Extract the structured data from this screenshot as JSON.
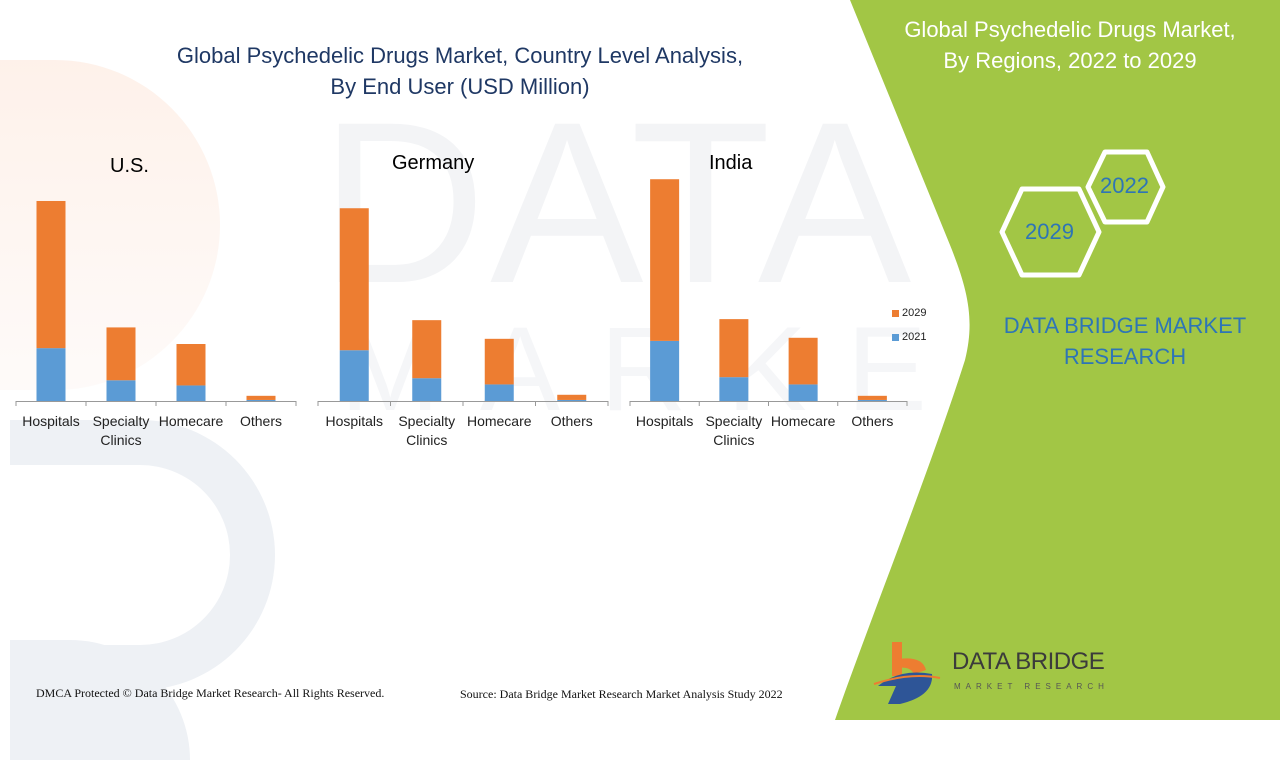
{
  "header": {
    "title_line1": "Global Psychedelic Drugs Market, Country Level Analysis,",
    "title_line2": "By End User (USD Million)"
  },
  "side_panel": {
    "title_line1": "Global Psychedelic Drugs Market,",
    "title_line2": "By Regions, 2022 to 2029",
    "hex_labels": [
      "2022",
      "2029"
    ],
    "brand_line1": "DATA BRIDGE MARKET",
    "brand_line2": "RESEARCH",
    "logo_name": "DATA BRIDGE",
    "logo_sub": "MARKET RESEARCH",
    "panel_color": "#a2c645",
    "text_accent": "#2e75b6"
  },
  "watermark": {
    "main": "DATA BRIDGE",
    "sub": "MARKET RESEARCH"
  },
  "footer": {
    "copyright": "DMCA Protected © Data Bridge Market Research- All Rights Reserved.",
    "source": "Source: Data Bridge Market Research Market Analysis Study 2022"
  },
  "chart_data": [
    {
      "type": "bar",
      "stacked": true,
      "title": "U.S.",
      "categories": [
        "Hospitals",
        "Specialty Clinics",
        "Homecare",
        "Others"
      ],
      "category_lines": [
        [
          "Hospitals"
        ],
        [
          "Specialty",
          "Clinics"
        ],
        [
          "Homecare"
        ],
        [
          "Others"
        ]
      ],
      "series": [
        {
          "name": "2021",
          "color": "#5b9bd5",
          "values": [
            51,
            20,
            15,
            1
          ]
        },
        {
          "name": "2029",
          "color": "#ed7d31",
          "values": [
            142,
            51,
            40,
            4
          ]
        }
      ],
      "xlabel": "",
      "ylabel": "",
      "grid": false,
      "legend": "none",
      "ylim": [
        0,
        220
      ]
    },
    {
      "type": "bar",
      "stacked": true,
      "title": "Germany",
      "categories": [
        "Hospitals",
        "Specialty Clinics",
        "Homecare",
        "Others"
      ],
      "category_lines": [
        [
          "Hospitals"
        ],
        [
          "Specialty",
          "Clinics"
        ],
        [
          "Homecare"
        ],
        [
          "Others"
        ]
      ],
      "series": [
        {
          "name": "2021",
          "color": "#5b9bd5",
          "values": [
            49,
            22,
            16,
            1
          ]
        },
        {
          "name": "2029",
          "color": "#ed7d31",
          "values": [
            137,
            56,
            44,
            5
          ]
        }
      ],
      "xlabel": "",
      "ylabel": "",
      "grid": false,
      "legend": "none",
      "ylim": [
        0,
        220
      ]
    },
    {
      "type": "bar",
      "stacked": true,
      "title": "India",
      "categories": [
        "Hospitals",
        "Specialty Clinics",
        "Homecare",
        "Others"
      ],
      "category_lines": [
        [
          "Hospitals"
        ],
        [
          "Specialty",
          "Clinics"
        ],
        [
          "Homecare"
        ],
        [
          "Others"
        ]
      ],
      "series": [
        {
          "name": "2021",
          "color": "#5b9bd5",
          "values": [
            58,
            23,
            16,
            1
          ]
        },
        {
          "name": "2029",
          "color": "#ed7d31",
          "values": [
            156,
            56,
            45,
            4
          ]
        }
      ],
      "xlabel": "",
      "ylabel": "",
      "grid": false,
      "legend": "right",
      "legend_entries": [
        "2029",
        "2021"
      ],
      "ylim": [
        0,
        220
      ]
    }
  ]
}
